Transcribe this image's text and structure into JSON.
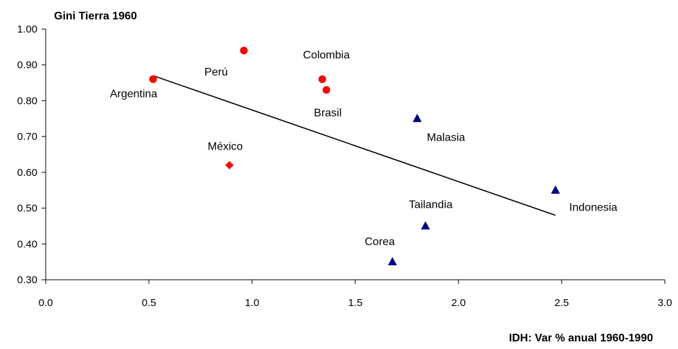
{
  "chart_data": {
    "type": "scatter",
    "ylabel": "Gini Tierra 1960",
    "xlabel": "IDH: Var % anual 1960-1990",
    "xlim": [
      0.0,
      3.0
    ],
    "ylim": [
      0.3,
      1.0
    ],
    "x_ticks": [
      "0.0",
      "0.5",
      "1.0",
      "1.5",
      "2.0",
      "2.5",
      "3.0"
    ],
    "y_ticks": [
      "1.00",
      "0.90",
      "0.80",
      "0.70",
      "0.60",
      "0.50",
      "0.40",
      "0.30"
    ],
    "grid": false,
    "legend": "none",
    "colors": {
      "latin_america": "#ff0000",
      "asia": "#000080",
      "trend": "#000000"
    },
    "points": [
      {
        "label": "Argentina",
        "x": 0.52,
        "y": 0.86,
        "marker": "circle",
        "color": "#ff0000"
      },
      {
        "label": "Perú",
        "x": 0.96,
        "y": 0.94,
        "marker": "circle",
        "color": "#ff0000"
      },
      {
        "label": "Colombia",
        "x": 1.34,
        "y": 0.86,
        "marker": "circle",
        "color": "#ff0000"
      },
      {
        "label": "Brasil",
        "x": 1.36,
        "y": 0.83,
        "marker": "circle",
        "color": "#ff0000"
      },
      {
        "label": "México",
        "x": 0.89,
        "y": 0.62,
        "marker": "diamond",
        "color": "#ff0000"
      },
      {
        "label": "Malasia",
        "x": 1.8,
        "y": 0.75,
        "marker": "triangle",
        "color": "#000080"
      },
      {
        "label": "Indonesia",
        "x": 2.47,
        "y": 0.55,
        "marker": "triangle",
        "color": "#000080"
      },
      {
        "label": "Tailandia",
        "x": 1.84,
        "y": 0.45,
        "marker": "triangle",
        "color": "#000080"
      },
      {
        "label": "Corea",
        "x": 1.68,
        "y": 0.35,
        "marker": "triangle",
        "color": "#000080"
      }
    ],
    "trendline": {
      "x": [
        0.52,
        2.47
      ],
      "y": [
        0.87,
        0.48
      ]
    }
  }
}
